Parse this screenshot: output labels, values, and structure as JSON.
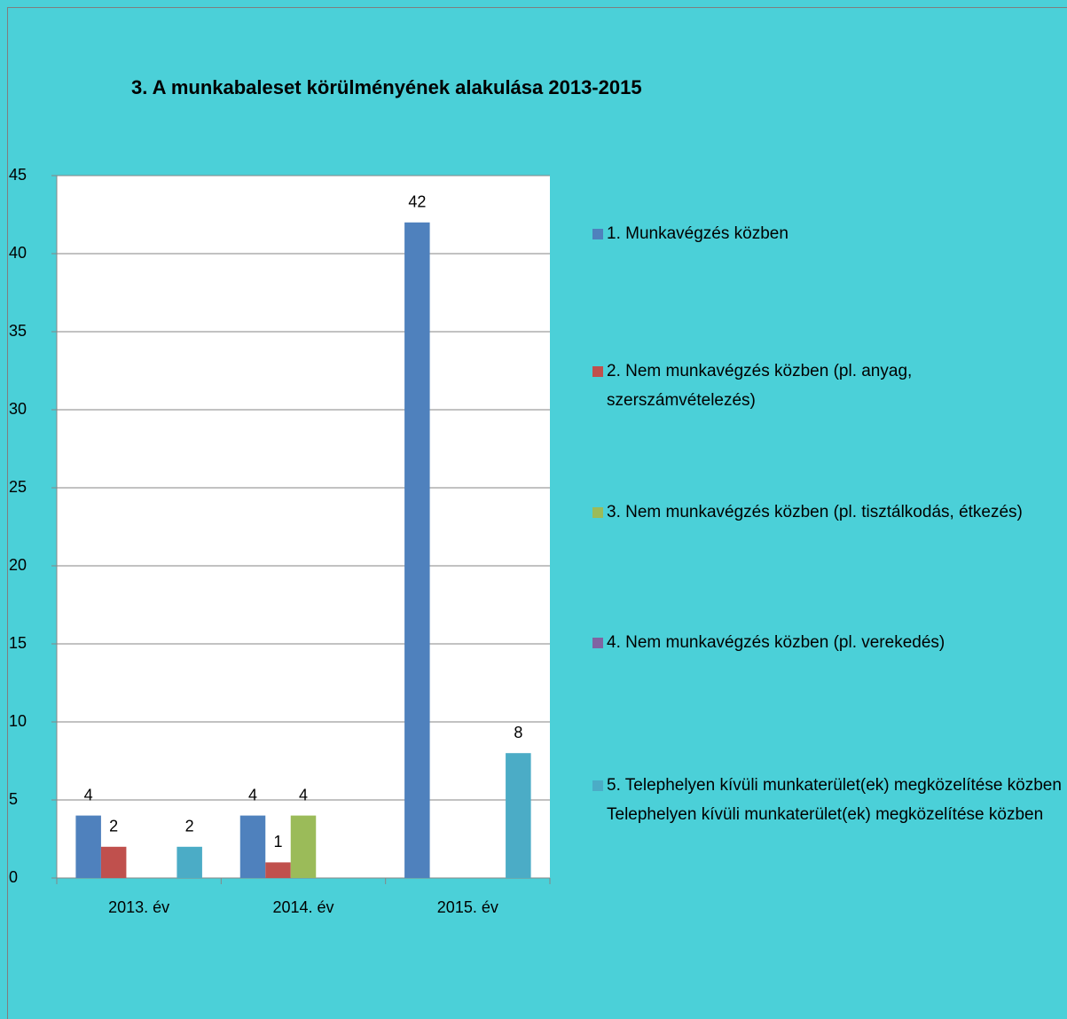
{
  "chart_data": {
    "type": "bar",
    "title": "3. A munkabaleset körülményének alakulása 2013-2015",
    "categories": [
      "2013. év",
      "2014. év",
      "2015. év"
    ],
    "series": [
      {
        "name": "1. Munkavégzés közben",
        "color": "#4f81bd",
        "values": [
          4,
          4,
          42
        ]
      },
      {
        "name": "2. Nem munkavégzés közben (pl. anyag, szerszámvételezés)",
        "color": "#c0504d",
        "values": [
          2,
          1,
          null
        ]
      },
      {
        "name": "3. Nem munkavégzés közben (pl. tisztálkodás, étkezés)",
        "color": "#9bbb59",
        "values": [
          null,
          4,
          null
        ]
      },
      {
        "name": "4. Nem munkavégzés közben (pl. verekedés)",
        "color": "#8064a2",
        "values": [
          null,
          null,
          null
        ]
      },
      {
        "name": "5. Telephelyen kívüli munkaterület(ek) megközelítése közben Telephelyen kívüli munkaterület(ek) megközelítése közben",
        "color": "#4bacc6",
        "values": [
          2,
          null,
          8
        ]
      }
    ],
    "ylim": [
      0,
      45
    ],
    "yticks": [
      0,
      5,
      10,
      15,
      20,
      25,
      30,
      35,
      40,
      45
    ],
    "grid": true,
    "legend": "right"
  }
}
